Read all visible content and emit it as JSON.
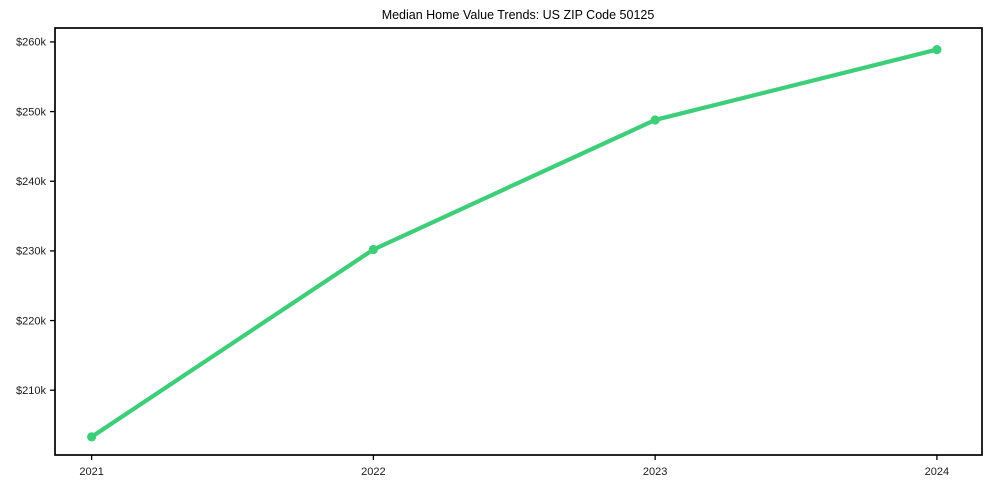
{
  "page": {
    "background_color": "#ffffff"
  },
  "chart_data": {
    "type": "line",
    "title": "Median Home Value Trends: US ZIP Code 50125",
    "series": [
      {
        "name": "Median home value",
        "x": [
          2021,
          2022,
          2023,
          2024
        ],
        "values": [
          203300,
          230200,
          248800,
          258900
        ]
      }
    ],
    "x_tick_labels": [
      "2021",
      "2022",
      "2023",
      "2024"
    ],
    "y_ticks": [
      {
        "value": 210000,
        "label": "$210k"
      },
      {
        "value": 220000,
        "label": "$220k"
      },
      {
        "value": 230000,
        "label": "$230k"
      },
      {
        "value": 240000,
        "label": "$240k"
      },
      {
        "value": 250000,
        "label": "$250k"
      },
      {
        "value": 260000,
        "label": "$260k"
      }
    ],
    "xlim": [
      2020.87,
      2024.16
    ],
    "ylim": [
      200700,
      262000
    ],
    "grid": false,
    "legend": false,
    "line_color": "#3ecd79",
    "marker": "circle",
    "axis_color": "#000000",
    "tick_label_color": "#1c1c1c"
  }
}
